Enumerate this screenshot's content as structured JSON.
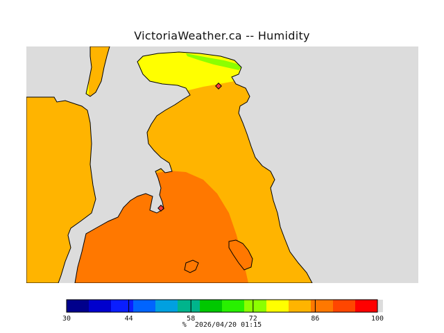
{
  "title": "VictoriaWeather.ca -- Humidity",
  "caption": {
    "unit": "%",
    "timestamp": "2026/04/20 01:15"
  },
  "legend": {
    "min": 30,
    "max": 100,
    "tick_values": [
      30,
      44,
      58,
      72,
      86,
      100
    ],
    "bins": [
      {
        "from": 30,
        "to": 35,
        "color": "#00008c"
      },
      {
        "from": 35,
        "to": 40,
        "color": "#0000cd"
      },
      {
        "from": 40,
        "to": 45,
        "color": "#0a1eff"
      },
      {
        "from": 45,
        "to": 50,
        "color": "#0064ff"
      },
      {
        "from": 50,
        "to": 55,
        "color": "#00a0e0"
      },
      {
        "from": 55,
        "to": 60,
        "color": "#00b48c"
      },
      {
        "from": 60,
        "to": 65,
        "color": "#00c800"
      },
      {
        "from": 65,
        "to": 70,
        "color": "#28f000"
      },
      {
        "from": 70,
        "to": 75,
        "color": "#8cff00"
      },
      {
        "from": 75,
        "to": 80,
        "color": "#ffff00"
      },
      {
        "from": 80,
        "to": 85,
        "color": "#ffb400"
      },
      {
        "from": 85,
        "to": 90,
        "color": "#ff7800"
      },
      {
        "from": 90,
        "to": 95,
        "color": "#ff4600"
      },
      {
        "from": 95,
        "to": 100,
        "color": "#ff0000"
      }
    ]
  },
  "map": {
    "water_color": "#dcdcdc",
    "coast_color": "#000000",
    "humidity_zones": [
      {
        "name": "humidity-zone-75-80",
        "min": 75,
        "max": 80,
        "color": "#ffff00"
      },
      {
        "name": "humidity-zone-70-75",
        "min": 70,
        "max": 75,
        "color": "#8cff00"
      },
      {
        "name": "humidity-zone-80-85",
        "min": 80,
        "max": 85,
        "color": "#ffb400"
      },
      {
        "name": "humidity-zone-85-90",
        "min": 85,
        "max": 90,
        "color": "#ff7800"
      }
    ]
  }
}
